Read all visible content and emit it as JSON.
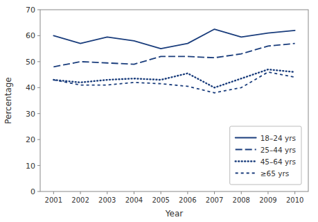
{
  "chart_data": {
    "type": "line",
    "x": [
      2001,
      2002,
      2003,
      2004,
      2005,
      2006,
      2007,
      2008,
      2009,
      2010
    ],
    "series": [
      {
        "name": "18–24 yrs",
        "color": "#1a3d7c",
        "line_style": "solid",
        "values": [
          60,
          57,
          59.5,
          58,
          55,
          57,
          62.5,
          59.5,
          61,
          62
        ]
      },
      {
        "name": "25–44 yrs",
        "color": "#1a3d7c",
        "line_style": "dashed",
        "values": [
          48,
          50,
          49.5,
          49,
          52,
          52,
          51.5,
          53,
          56,
          57
        ]
      },
      {
        "name": "45–64 yrs",
        "color": "#1a3d7c",
        "line_style": "dotted",
        "values": [
          43,
          42,
          43,
          43.5,
          43,
          45.5,
          40,
          43.5,
          47,
          46
        ]
      },
      {
        "name": "≥65 yrs",
        "color": "#1a3d7c",
        "line_style": "short-dashed",
        "values": [
          43,
          41,
          41,
          42,
          41.5,
          40.5,
          38,
          40,
          46,
          44
        ]
      }
    ],
    "xlabel": "Year",
    "ylabel": "Percentage",
    "xlim": [
      2000.5,
      2010.5
    ],
    "xticks": [
      2001,
      2002,
      2003,
      2004,
      2005,
      2006,
      2007,
      2008,
      2009,
      2010
    ],
    "ylim": [
      0,
      70
    ],
    "yticks": [
      0,
      10,
      20,
      30,
      40,
      50,
      60,
      70
    ],
    "legend": "lower right",
    "grid": false
  }
}
